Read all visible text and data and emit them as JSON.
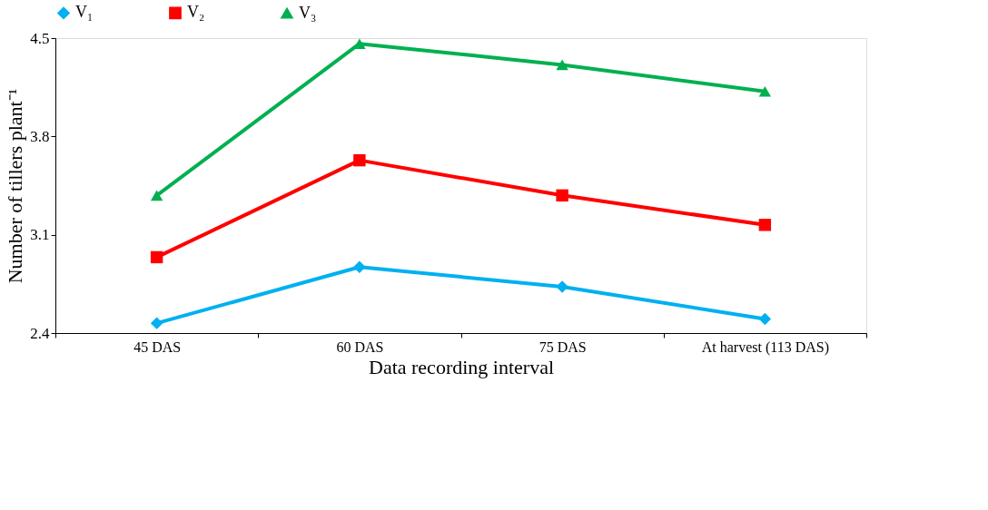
{
  "chart_data": {
    "type": "line",
    "xlabel": "Data recording interval",
    "ylabel": "Number of tillers plant⁻¹",
    "categories": [
      "45 DAS",
      "60 DAS",
      "75 DAS",
      "At harvest (113 DAS)"
    ],
    "ylim": [
      2.4,
      4.5
    ],
    "yticks": [
      2.4,
      3.1,
      3.8,
      4.5
    ],
    "grid": false,
    "legend": "top",
    "line_style": "solid",
    "series": [
      {
        "name": "V₁",
        "color": "#00b0f0",
        "marker": "diamond",
        "values": [
          2.47,
          2.87,
          2.73,
          2.5
        ]
      },
      {
        "name": "V₂",
        "color": "#ff0000",
        "marker": "square",
        "values": [
          2.94,
          3.63,
          3.38,
          3.17
        ]
      },
      {
        "name": "V₃",
        "color": "#00b050",
        "marker": "triangle",
        "values": [
          3.38,
          4.46,
          4.31,
          4.12
        ]
      }
    ]
  }
}
